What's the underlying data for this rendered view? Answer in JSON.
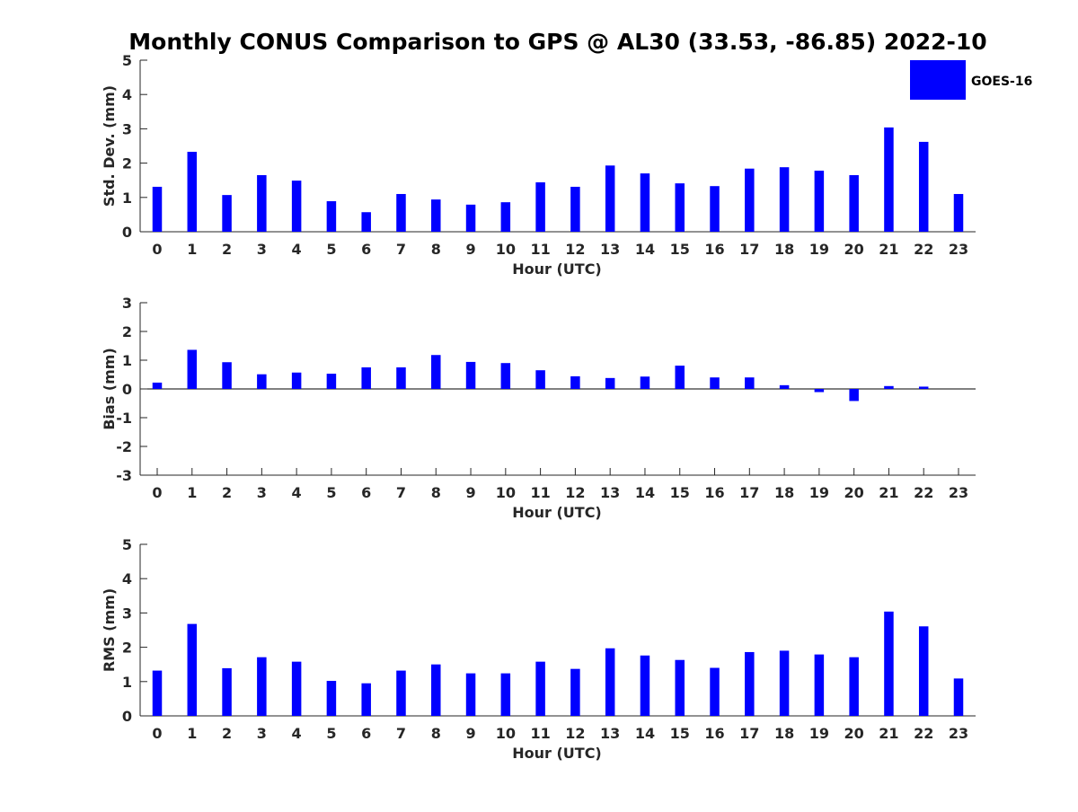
{
  "title": "Monthly CONUS Comparison to GPS @ AL30 (33.53, -86.85) 2022-10",
  "legend": {
    "label": "GOES-16",
    "color": "#0000ff",
    "placement": "top-right"
  },
  "chart_data": [
    {
      "type": "bar",
      "categories": [
        "0",
        "1",
        "2",
        "3",
        "4",
        "5",
        "6",
        "7",
        "8",
        "9",
        "10",
        "11",
        "12",
        "13",
        "14",
        "15",
        "16",
        "17",
        "18",
        "19",
        "20",
        "21",
        "22",
        "23"
      ],
      "series": [
        {
          "name": "GOES-16",
          "color": "#0000ff",
          "values": [
            1.31,
            2.33,
            1.07,
            1.65,
            1.49,
            0.89,
            0.57,
            1.1,
            0.94,
            0.79,
            0.86,
            1.44,
            1.31,
            1.93,
            1.7,
            1.41,
            1.33,
            1.84,
            1.88,
            1.78,
            1.65,
            3.04,
            2.62,
            1.1
          ]
        }
      ],
      "xlabel": "Hour (UTC)",
      "ylabel": "Std. Dev. (mm)",
      "ylim": [
        0,
        5
      ],
      "yticks": [
        "0",
        "1",
        "2",
        "3",
        "4",
        "5"
      ],
      "grid": false
    },
    {
      "type": "bar",
      "categories": [
        "0",
        "1",
        "2",
        "3",
        "4",
        "5",
        "6",
        "7",
        "8",
        "9",
        "10",
        "11",
        "12",
        "13",
        "14",
        "15",
        "16",
        "17",
        "18",
        "19",
        "20",
        "21",
        "22",
        "23"
      ],
      "series": [
        {
          "name": "GOES-16",
          "color": "#0000ff",
          "values": [
            0.22,
            1.36,
            0.93,
            0.51,
            0.57,
            0.53,
            0.75,
            0.75,
            1.18,
            0.94,
            0.9,
            0.65,
            0.44,
            0.38,
            0.43,
            0.81,
            0.4,
            0.4,
            0.13,
            -0.11,
            -0.42,
            0.1,
            0.08,
            0.0
          ]
        }
      ],
      "xlabel": "Hour (UTC)",
      "ylabel": "Bias (mm)",
      "ylim": [
        -3,
        3
      ],
      "yticks": [
        "-3",
        "-2",
        "-1",
        "0",
        "1",
        "2",
        "3"
      ],
      "zero_line": true,
      "grid": false
    },
    {
      "type": "bar",
      "categories": [
        "0",
        "1",
        "2",
        "3",
        "4",
        "5",
        "6",
        "7",
        "8",
        "9",
        "10",
        "11",
        "12",
        "13",
        "14",
        "15",
        "16",
        "17",
        "18",
        "19",
        "20",
        "21",
        "22",
        "23"
      ],
      "series": [
        {
          "name": "GOES-16",
          "color": "#0000ff",
          "values": [
            1.32,
            2.68,
            1.39,
            1.71,
            1.58,
            1.02,
            0.95,
            1.32,
            1.5,
            1.24,
            1.24,
            1.58,
            1.37,
            1.97,
            1.76,
            1.63,
            1.4,
            1.86,
            1.9,
            1.79,
            1.71,
            3.04,
            2.61,
            1.09
          ]
        }
      ],
      "xlabel": "Hour (UTC)",
      "ylabel": "RMS (mm)",
      "ylim": [
        0,
        5
      ],
      "yticks": [
        "0",
        "1",
        "2",
        "3",
        "4",
        "5"
      ],
      "grid": false
    }
  ]
}
